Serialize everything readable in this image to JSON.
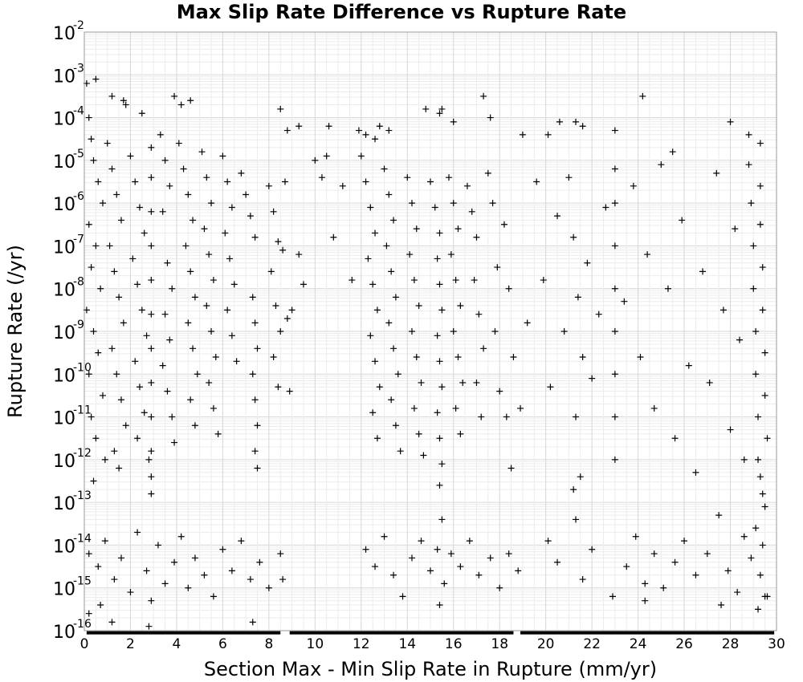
{
  "chart_data": {
    "type": "scatter",
    "title": "Max Slip Rate Difference vs Rupture Rate",
    "xlabel": "Section Max - Min Slip Rate in Rupture (mm/yr)",
    "ylabel": "Rupture Rate (/yr)",
    "xlim": [
      0,
      30
    ],
    "ylim": [
      1e-16,
      0.01
    ],
    "yscale": "log",
    "grid": true,
    "marker": "plus",
    "marker_color": "#000000",
    "xticks": [
      "0",
      "2",
      "4",
      "6",
      "8",
      "10",
      "12",
      "14",
      "16",
      "18",
      "20",
      "22",
      "24",
      "26",
      "28",
      "30"
    ],
    "yticks": [
      {
        "base": "10",
        "exp": "-2"
      },
      {
        "base": "10",
        "exp": "-3"
      },
      {
        "base": "10",
        "exp": "-4"
      },
      {
        "base": "10",
        "exp": "-5"
      },
      {
        "base": "10",
        "exp": "-6"
      },
      {
        "base": "10",
        "exp": "-7"
      },
      {
        "base": "10",
        "exp": "-8"
      },
      {
        "base": "10",
        "exp": "-9"
      },
      {
        "base": "10",
        "exp": "-10"
      },
      {
        "base": "10",
        "exp": "-11"
      },
      {
        "base": "10",
        "exp": "-12"
      },
      {
        "base": "10",
        "exp": "-13"
      },
      {
        "base": "10",
        "exp": "-14"
      },
      {
        "base": "10",
        "exp": "-15"
      },
      {
        "base": "10",
        "exp": "-16"
      }
    ],
    "points": [
      [
        0.1,
        -3.2
      ],
      [
        0.5,
        -3.1
      ],
      [
        1.2,
        -3.5
      ],
      [
        1.7,
        -3.6
      ],
      [
        1.8,
        -3.7
      ],
      [
        2.5,
        -3.9
      ],
      [
        3.9,
        -3.5
      ],
      [
        4.6,
        -3.6
      ],
      [
        4.2,
        -3.7
      ],
      [
        8.5,
        -3.8
      ],
      [
        8.8,
        -4.3
      ],
      [
        9.3,
        -4.2
      ],
      [
        10.6,
        -4.2
      ],
      [
        11.9,
        -4.3
      ],
      [
        12.2,
        -4.4
      ],
      [
        12.6,
        -4.5
      ],
      [
        12.8,
        -4.2
      ],
      [
        13.2,
        -4.3
      ],
      [
        14.8,
        -3.8
      ],
      [
        15.4,
        -3.9
      ],
      [
        15.5,
        -3.8
      ],
      [
        16.0,
        -4.1
      ],
      [
        17.3,
        -3.5
      ],
      [
        17.6,
        -4.0
      ],
      [
        19.0,
        -4.4
      ],
      [
        20.1,
        -4.4
      ],
      [
        20.6,
        -4.1
      ],
      [
        21.3,
        -4.1
      ],
      [
        21.6,
        -4.2
      ],
      [
        23.0,
        -4.3
      ],
      [
        24.2,
        -3.5
      ],
      [
        25.5,
        -4.8
      ],
      [
        28.0,
        -4.1
      ],
      [
        28.8,
        -4.4
      ],
      [
        29.3,
        -4.6
      ],
      [
        0.2,
        -4.0
      ],
      [
        0.3,
        -4.5
      ],
      [
        0.4,
        -5.0
      ],
      [
        0.6,
        -5.5
      ],
      [
        0.8,
        -6.0
      ],
      [
        0.2,
        -6.5
      ],
      [
        0.5,
        -7.0
      ],
      [
        0.3,
        -7.5
      ],
      [
        0.7,
        -8.0
      ],
      [
        0.1,
        -8.5
      ],
      [
        0.4,
        -9.0
      ],
      [
        0.6,
        -9.5
      ],
      [
        0.2,
        -10.0
      ],
      [
        0.8,
        -10.5
      ],
      [
        0.3,
        -11.0
      ],
      [
        0.5,
        -11.5
      ],
      [
        0.9,
        -12.0
      ],
      [
        0.4,
        -12.5
      ],
      [
        1.0,
        -4.6
      ],
      [
        1.2,
        -5.2
      ],
      [
        1.4,
        -5.8
      ],
      [
        1.6,
        -6.4
      ],
      [
        1.1,
        -7.0
      ],
      [
        1.3,
        -7.6
      ],
      [
        1.5,
        -8.2
      ],
      [
        1.7,
        -8.8
      ],
      [
        1.2,
        -9.4
      ],
      [
        1.4,
        -10.0
      ],
      [
        1.6,
        -10.6
      ],
      [
        1.8,
        -11.2
      ],
      [
        1.3,
        -11.8
      ],
      [
        1.5,
        -12.2
      ],
      [
        2.0,
        -4.9
      ],
      [
        2.2,
        -5.5
      ],
      [
        2.4,
        -6.1
      ],
      [
        2.6,
        -6.7
      ],
      [
        2.1,
        -7.3
      ],
      [
        2.3,
        -7.9
      ],
      [
        2.5,
        -8.5
      ],
      [
        2.7,
        -9.1
      ],
      [
        2.2,
        -9.7
      ],
      [
        2.4,
        -10.3
      ],
      [
        2.6,
        -10.9
      ],
      [
        2.3,
        -11.5
      ],
      [
        2.8,
        -12.0
      ],
      [
        2.9,
        -4.7
      ],
      [
        2.9,
        -5.4
      ],
      [
        2.9,
        -6.2
      ],
      [
        2.9,
        -7.0
      ],
      [
        2.9,
        -7.8
      ],
      [
        2.9,
        -8.6
      ],
      [
        2.9,
        -9.4
      ],
      [
        2.9,
        -10.2
      ],
      [
        2.9,
        -11.0
      ],
      [
        2.9,
        -11.8
      ],
      [
        2.9,
        -12.4
      ],
      [
        2.9,
        -12.8
      ],
      [
        3.3,
        -4.4
      ],
      [
        3.5,
        -5.0
      ],
      [
        3.7,
        -5.6
      ],
      [
        3.4,
        -6.2
      ],
      [
        3.6,
        -7.4
      ],
      [
        3.8,
        -8.0
      ],
      [
        3.5,
        -8.6
      ],
      [
        3.7,
        -9.2
      ],
      [
        3.4,
        -9.8
      ],
      [
        3.6,
        -10.4
      ],
      [
        3.8,
        -11.0
      ],
      [
        3.9,
        -11.6
      ],
      [
        4.1,
        -4.6
      ],
      [
        4.3,
        -5.2
      ],
      [
        4.5,
        -5.8
      ],
      [
        4.7,
        -6.4
      ],
      [
        4.4,
        -7.0
      ],
      [
        4.6,
        -7.6
      ],
      [
        4.8,
        -8.2
      ],
      [
        4.5,
        -8.8
      ],
      [
        4.7,
        -9.4
      ],
      [
        4.9,
        -10.0
      ],
      [
        4.6,
        -10.6
      ],
      [
        4.8,
        -11.2
      ],
      [
        5.1,
        -4.8
      ],
      [
        5.3,
        -5.4
      ],
      [
        5.5,
        -6.0
      ],
      [
        5.2,
        -6.6
      ],
      [
        5.4,
        -7.2
      ],
      [
        5.6,
        -7.8
      ],
      [
        5.3,
        -8.4
      ],
      [
        5.5,
        -9.0
      ],
      [
        5.7,
        -9.6
      ],
      [
        5.4,
        -10.2
      ],
      [
        5.6,
        -10.8
      ],
      [
        5.8,
        -11.4
      ],
      [
        6.0,
        -4.9
      ],
      [
        6.2,
        -5.5
      ],
      [
        6.4,
        -6.1
      ],
      [
        6.1,
        -6.7
      ],
      [
        6.3,
        -7.3
      ],
      [
        6.5,
        -7.9
      ],
      [
        6.2,
        -8.5
      ],
      [
        6.4,
        -9.1
      ],
      [
        6.6,
        -9.7
      ],
      [
        6.8,
        -5.3
      ],
      [
        7.0,
        -5.8
      ],
      [
        7.2,
        -6.3
      ],
      [
        7.4,
        -6.8
      ],
      [
        7.3,
        -8.2
      ],
      [
        7.4,
        -8.8
      ],
      [
        7.5,
        -9.4
      ],
      [
        7.3,
        -10.0
      ],
      [
        7.4,
        -10.6
      ],
      [
        7.5,
        -11.2
      ],
      [
        7.4,
        -11.8
      ],
      [
        7.5,
        -12.2
      ],
      [
        8.0,
        -5.6
      ],
      [
        8.2,
        -6.2
      ],
      [
        8.4,
        -6.9
      ],
      [
        8.1,
        -7.6
      ],
      [
        8.3,
        -8.4
      ],
      [
        8.5,
        -9.0
      ],
      [
        8.2,
        -9.6
      ],
      [
        8.4,
        -10.3
      ],
      [
        8.7,
        -5.5
      ],
      [
        8.6,
        -7.1
      ],
      [
        8.8,
        -8.7
      ],
      [
        8.9,
        -10.4
      ],
      [
        9.0,
        -8.5
      ],
      [
        9.3,
        -7.2
      ],
      [
        9.5,
        -7.9
      ],
      [
        10.0,
        -5.0
      ],
      [
        10.3,
        -5.4
      ],
      [
        10.5,
        -4.9
      ],
      [
        10.8,
        -6.8
      ],
      [
        11.2,
        -5.6
      ],
      [
        11.6,
        -7.8
      ],
      [
        12.0,
        -4.9
      ],
      [
        12.2,
        -5.5
      ],
      [
        12.4,
        -6.1
      ],
      [
        12.6,
        -6.7
      ],
      [
        12.3,
        -7.3
      ],
      [
        12.5,
        -7.9
      ],
      [
        12.7,
        -8.5
      ],
      [
        12.4,
        -9.1
      ],
      [
        12.6,
        -9.7
      ],
      [
        12.8,
        -10.3
      ],
      [
        12.5,
        -10.9
      ],
      [
        12.7,
        -11.5
      ],
      [
        13.0,
        -5.2
      ],
      [
        13.2,
        -5.8
      ],
      [
        13.4,
        -6.4
      ],
      [
        13.1,
        -7.0
      ],
      [
        13.3,
        -7.6
      ],
      [
        13.5,
        -8.2
      ],
      [
        13.2,
        -8.8
      ],
      [
        13.4,
        -9.4
      ],
      [
        13.6,
        -10.0
      ],
      [
        13.3,
        -10.6
      ],
      [
        13.5,
        -11.2
      ],
      [
        13.7,
        -11.8
      ],
      [
        14.0,
        -5.4
      ],
      [
        14.2,
        -6.0
      ],
      [
        14.4,
        -6.6
      ],
      [
        14.1,
        -7.2
      ],
      [
        14.3,
        -7.8
      ],
      [
        14.5,
        -8.4
      ],
      [
        14.2,
        -9.0
      ],
      [
        14.4,
        -9.6
      ],
      [
        14.6,
        -10.2
      ],
      [
        14.3,
        -10.8
      ],
      [
        14.5,
        -11.4
      ],
      [
        14.7,
        -11.9
      ],
      [
        15.0,
        -5.5
      ],
      [
        15.2,
        -6.1
      ],
      [
        15.4,
        -6.7
      ],
      [
        15.3,
        -7.3
      ],
      [
        15.4,
        -7.9
      ],
      [
        15.5,
        -8.5
      ],
      [
        15.3,
        -9.1
      ],
      [
        15.4,
        -9.7
      ],
      [
        15.5,
        -10.3
      ],
      [
        15.3,
        -10.9
      ],
      [
        15.4,
        -11.5
      ],
      [
        15.5,
        -12.1
      ],
      [
        15.4,
        -12.6
      ],
      [
        15.8,
        -5.4
      ],
      [
        16.0,
        -6.0
      ],
      [
        16.2,
        -6.6
      ],
      [
        15.9,
        -7.2
      ],
      [
        16.1,
        -7.8
      ],
      [
        16.3,
        -8.4
      ],
      [
        16.0,
        -9.0
      ],
      [
        16.2,
        -9.6
      ],
      [
        16.4,
        -10.2
      ],
      [
        16.1,
        -10.8
      ],
      [
        16.3,
        -11.4
      ],
      [
        16.6,
        -5.6
      ],
      [
        16.8,
        -6.2
      ],
      [
        17.0,
        -6.8
      ],
      [
        16.9,
        -7.8
      ],
      [
        17.1,
        -8.6
      ],
      [
        17.3,
        -9.4
      ],
      [
        17.0,
        -10.2
      ],
      [
        17.2,
        -11.0
      ],
      [
        17.5,
        -5.3
      ],
      [
        17.7,
        -6.0
      ],
      [
        17.9,
        -7.5
      ],
      [
        17.8,
        -9.0
      ],
      [
        18.0,
        -10.4
      ],
      [
        18.2,
        -6.5
      ],
      [
        18.4,
        -8.0
      ],
      [
        18.6,
        -9.6
      ],
      [
        18.3,
        -11.0
      ],
      [
        18.5,
        -12.2
      ],
      [
        18.9,
        -10.8
      ],
      [
        19.2,
        -8.8
      ],
      [
        19.6,
        -5.5
      ],
      [
        19.9,
        -7.8
      ],
      [
        20.2,
        -10.3
      ],
      [
        20.5,
        -6.3
      ],
      [
        20.8,
        -9.0
      ],
      [
        21.0,
        -5.4
      ],
      [
        21.2,
        -6.8
      ],
      [
        21.4,
        -8.2
      ],
      [
        21.6,
        -9.6
      ],
      [
        21.3,
        -11.0
      ],
      [
        21.5,
        -12.4
      ],
      [
        21.2,
        -12.7
      ],
      [
        21.8,
        -7.4
      ],
      [
        22.0,
        -10.1
      ],
      [
        22.3,
        -8.6
      ],
      [
        22.6,
        -6.1
      ],
      [
        23.0,
        -5.2
      ],
      [
        23.0,
        -6.0
      ],
      [
        23.0,
        -7.0
      ],
      [
        23.0,
        -8.0
      ],
      [
        23.0,
        -9.0
      ],
      [
        23.0,
        -10.0
      ],
      [
        23.0,
        -11.0
      ],
      [
        23.0,
        -12.0
      ],
      [
        23.4,
        -8.3
      ],
      [
        23.8,
        -5.6
      ],
      [
        24.1,
        -9.6
      ],
      [
        24.4,
        -7.2
      ],
      [
        24.7,
        -10.8
      ],
      [
        25.0,
        -5.1
      ],
      [
        25.3,
        -8.0
      ],
      [
        25.6,
        -11.5
      ],
      [
        25.9,
        -6.4
      ],
      [
        26.2,
        -9.8
      ],
      [
        26.5,
        -12.3
      ],
      [
        26.8,
        -7.6
      ],
      [
        27.1,
        -10.2
      ],
      [
        27.4,
        -5.3
      ],
      [
        27.7,
        -8.5
      ],
      [
        28.0,
        -11.3
      ],
      [
        28.2,
        -6.6
      ],
      [
        28.4,
        -9.2
      ],
      [
        28.6,
        -12.0
      ],
      [
        28.8,
        -5.1
      ],
      [
        28.9,
        -6.0
      ],
      [
        29.0,
        -7.0
      ],
      [
        29.0,
        -8.0
      ],
      [
        29.1,
        -9.0
      ],
      [
        29.1,
        -10.0
      ],
      [
        29.2,
        -11.0
      ],
      [
        29.2,
        -12.0
      ],
      [
        29.3,
        -5.6
      ],
      [
        29.3,
        -6.5
      ],
      [
        29.4,
        -7.5
      ],
      [
        29.4,
        -8.5
      ],
      [
        29.5,
        -9.5
      ],
      [
        29.5,
        -10.5
      ],
      [
        29.6,
        -11.5
      ],
      [
        29.3,
        -12.4
      ],
      [
        29.4,
        -12.8
      ],
      [
        29.5,
        -13.1
      ],
      [
        0.2,
        -14.2
      ],
      [
        0.6,
        -14.5
      ],
      [
        0.9,
        -13.9
      ],
      [
        1.3,
        -14.8
      ],
      [
        1.6,
        -14.3
      ],
      [
        2.0,
        -15.1
      ],
      [
        2.3,
        -13.7
      ],
      [
        2.7,
        -14.6
      ],
      [
        2.9,
        -15.3
      ],
      [
        3.2,
        -14.0
      ],
      [
        3.5,
        -14.9
      ],
      [
        3.9,
        -14.4
      ],
      [
        4.2,
        -13.8
      ],
      [
        4.5,
        -15.0
      ],
      [
        4.8,
        -14.3
      ],
      [
        5.2,
        -14.7
      ],
      [
        5.6,
        -15.2
      ],
      [
        6.0,
        -14.1
      ],
      [
        6.4,
        -14.6
      ],
      [
        6.8,
        -13.9
      ],
      [
        7.2,
        -14.8
      ],
      [
        7.6,
        -14.4
      ],
      [
        8.0,
        -15.0
      ],
      [
        8.5,
        -14.2
      ],
      [
        8.6,
        -14.8
      ],
      [
        12.2,
        -14.1
      ],
      [
        12.6,
        -14.5
      ],
      [
        13.0,
        -13.8
      ],
      [
        13.4,
        -14.7
      ],
      [
        13.8,
        -15.2
      ],
      [
        14.2,
        -14.3
      ],
      [
        14.6,
        -13.9
      ],
      [
        15.0,
        -14.6
      ],
      [
        15.3,
        -14.1
      ],
      [
        15.5,
        -13.4
      ],
      [
        15.6,
        -14.9
      ],
      [
        15.9,
        -14.2
      ],
      [
        16.3,
        -14.5
      ],
      [
        16.7,
        -13.9
      ],
      [
        17.1,
        -14.7
      ],
      [
        17.6,
        -14.3
      ],
      [
        18.0,
        -15.0
      ],
      [
        18.4,
        -14.2
      ],
      [
        18.8,
        -14.6
      ],
      [
        20.1,
        -13.9
      ],
      [
        20.5,
        -14.4
      ],
      [
        21.3,
        -13.4
      ],
      [
        21.6,
        -14.8
      ],
      [
        22.0,
        -14.1
      ],
      [
        22.9,
        -15.2
      ],
      [
        23.5,
        -14.5
      ],
      [
        23.9,
        -13.8
      ],
      [
        24.3,
        -14.9
      ],
      [
        24.7,
        -14.2
      ],
      [
        25.1,
        -15.0
      ],
      [
        25.6,
        -14.4
      ],
      [
        26.0,
        -13.9
      ],
      [
        26.5,
        -14.7
      ],
      [
        27.0,
        -14.2
      ],
      [
        27.5,
        -13.3
      ],
      [
        27.9,
        -14.6
      ],
      [
        28.3,
        -15.1
      ],
      [
        28.6,
        -13.8
      ],
      [
        28.9,
        -14.3
      ],
      [
        29.1,
        -13.6
      ],
      [
        29.3,
        -14.7
      ],
      [
        29.5,
        -15.2
      ],
      [
        29.4,
        -14.0
      ],
      [
        29.2,
        -15.5
      ],
      [
        0.2,
        -15.6
      ],
      [
        0.7,
        -15.4
      ],
      [
        1.2,
        -15.8
      ],
      [
        2.8,
        -15.9
      ],
      [
        7.3,
        -15.8
      ],
      [
        15.4,
        -15.4
      ],
      [
        24.3,
        -15.3
      ],
      [
        27.6,
        -15.4
      ],
      [
        29.6,
        -15.2
      ]
    ],
    "bottom_band": {
      "y_exp": -16.05,
      "x_ranges": [
        [
          0.1,
          8.5
        ],
        [
          8.9,
          18.6
        ],
        [
          18.9,
          29.9
        ]
      ]
    }
  }
}
